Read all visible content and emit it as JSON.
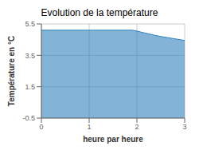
{
  "chart_data": {
    "type": "area",
    "title": "Evolution de la température",
    "xlabel": "heure par heure",
    "ylabel": "Température en °C",
    "x": [
      0,
      0.1,
      0.2,
      0.3,
      0.4,
      0.5,
      0.6,
      0.7,
      0.8,
      0.9,
      1.0,
      1.1,
      1.2,
      1.3,
      1.4,
      1.5,
      1.6,
      1.7,
      1.8,
      1.9,
      2.0,
      2.1,
      2.2,
      2.3,
      2.4,
      2.5,
      2.6,
      2.7,
      2.8,
      2.9,
      3.0
    ],
    "values": [
      5.1,
      5.1,
      5.1,
      5.1,
      5.1,
      5.1,
      5.1,
      5.1,
      5.1,
      5.1,
      5.1,
      5.1,
      5.1,
      5.1,
      5.1,
      5.1,
      5.1,
      5.1,
      5.1,
      5.1,
      5.05,
      4.97,
      4.9,
      4.83,
      4.76,
      4.7,
      4.65,
      4.6,
      4.55,
      4.5,
      4.45
    ],
    "xlim": [
      0,
      3
    ],
    "ylim": [
      -0.5,
      5.5
    ],
    "xticks": [
      0,
      1,
      2,
      3
    ],
    "yticks": [
      -0.5,
      1.5,
      3.5,
      5.5
    ],
    "grid": true
  }
}
